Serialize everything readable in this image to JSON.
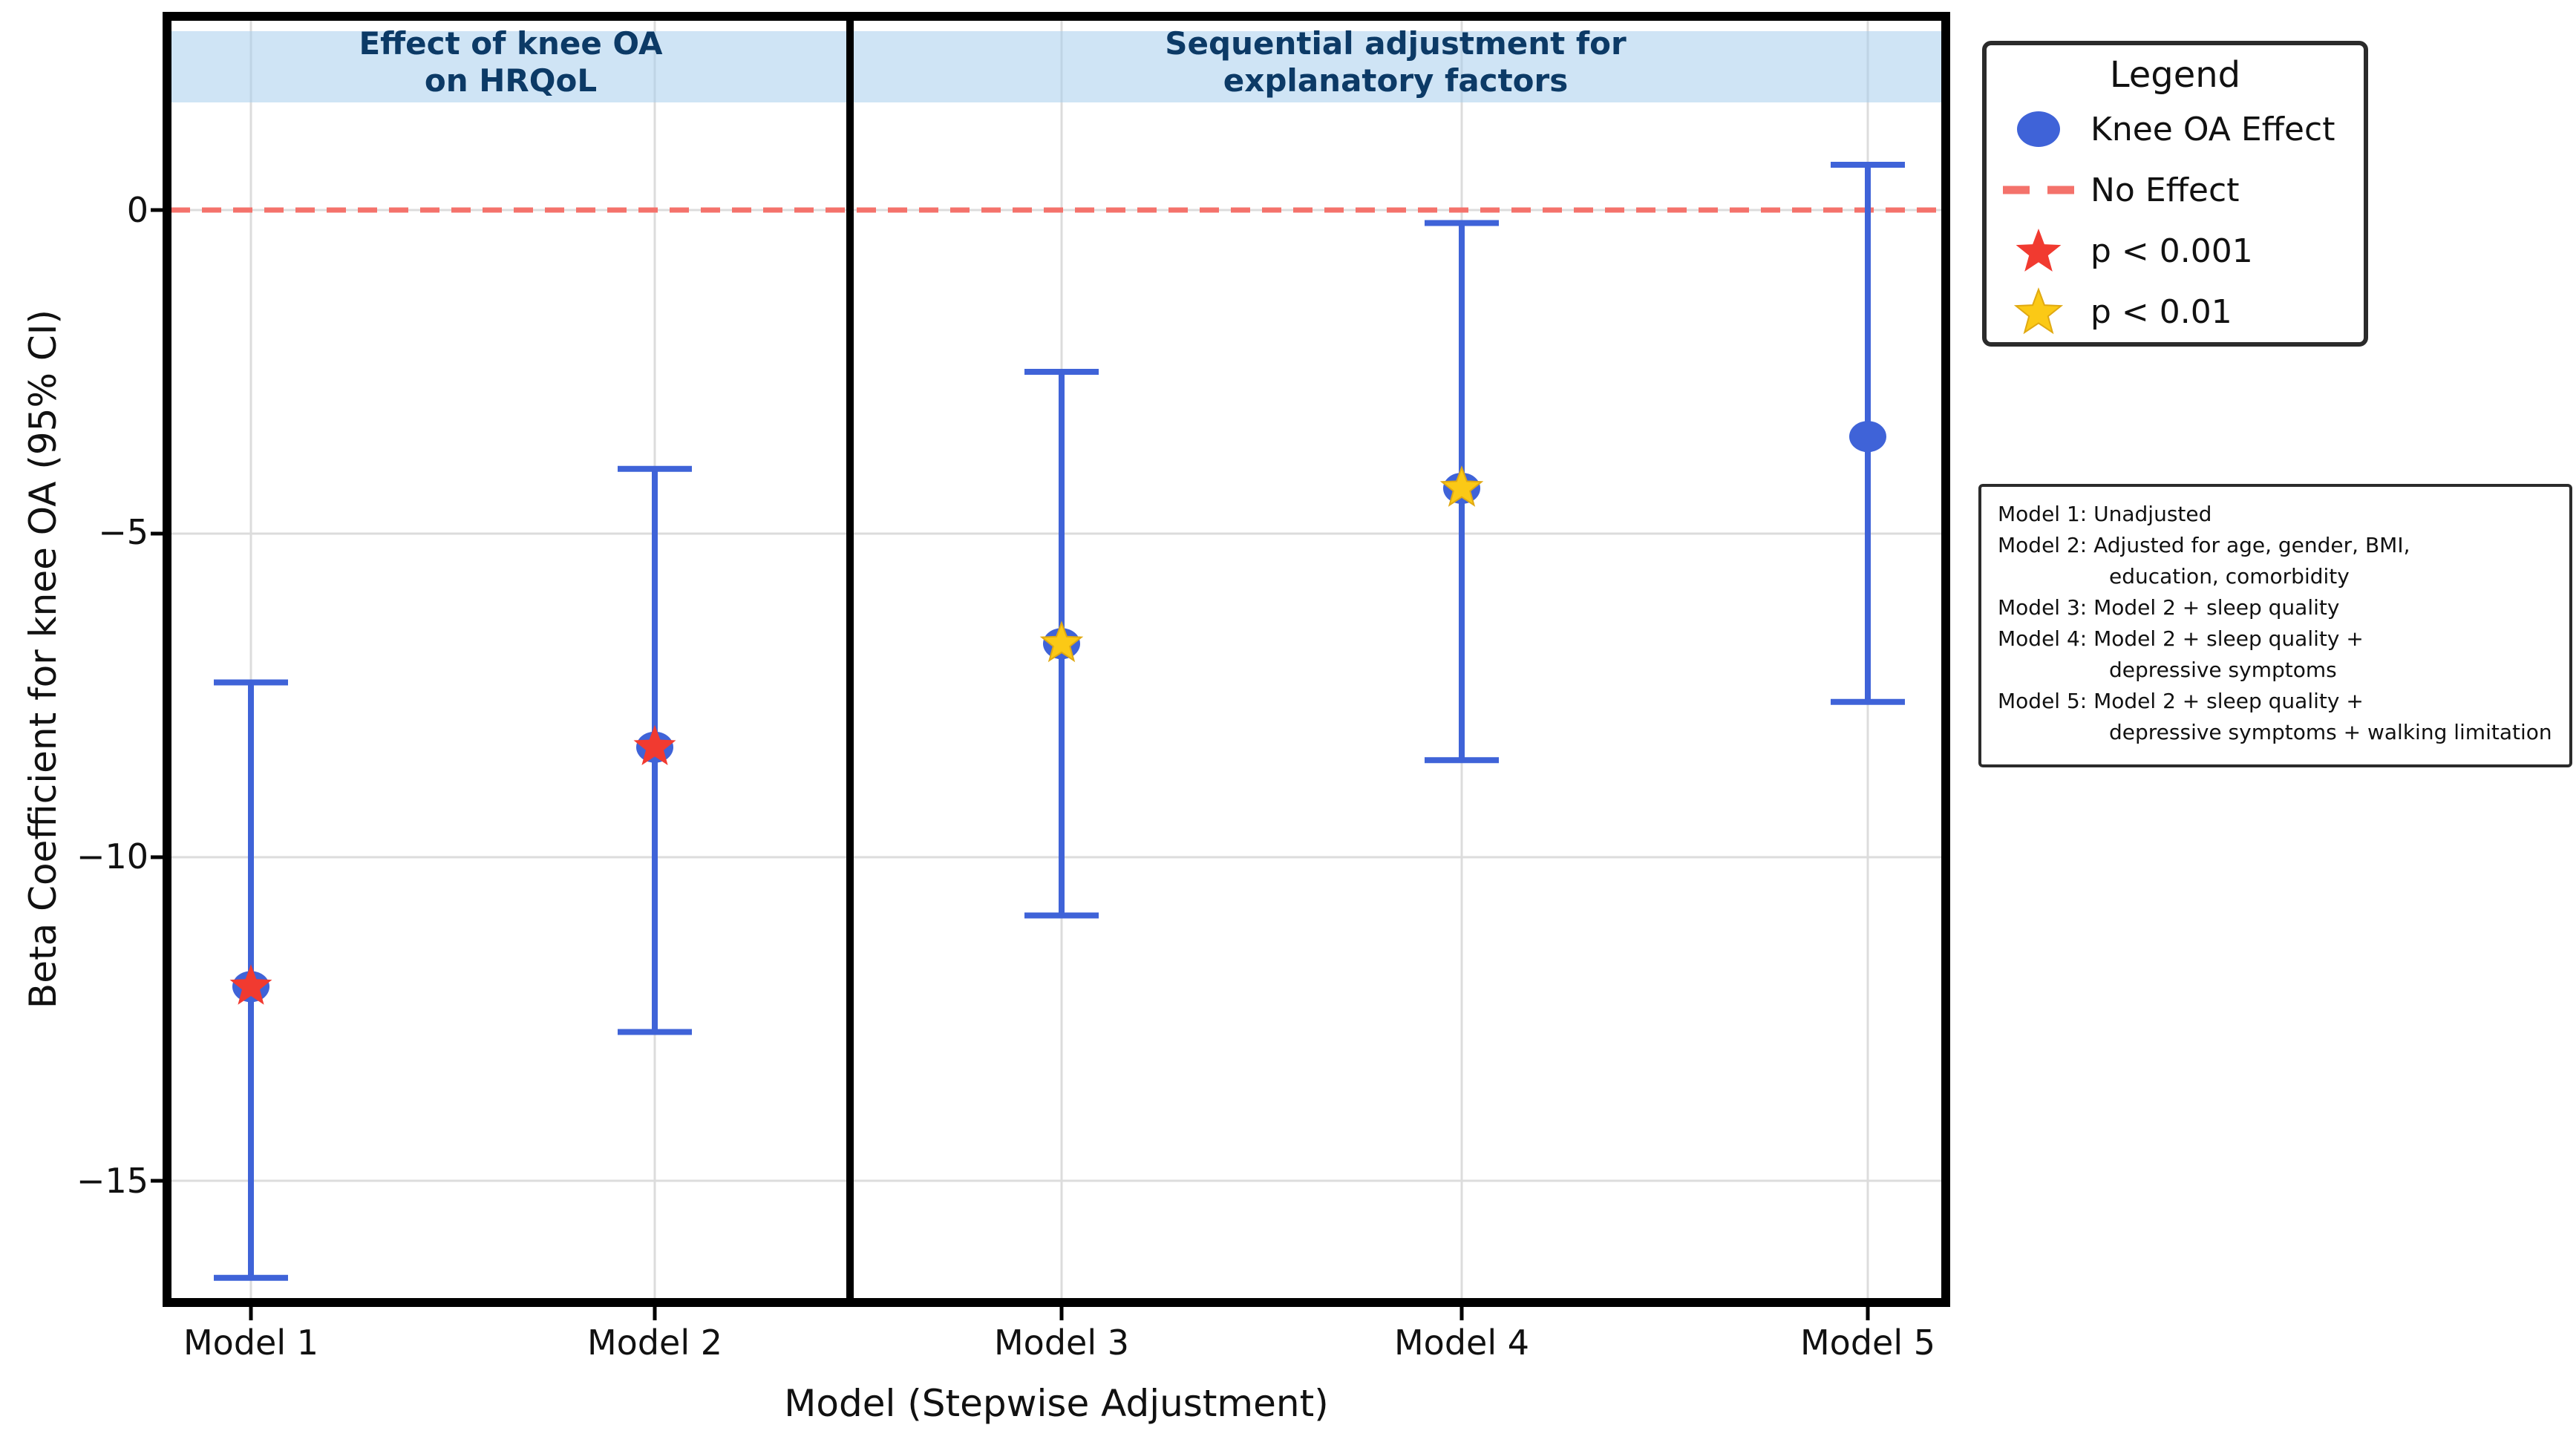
{
  "colors": {
    "marker_blue": "#3f63d8",
    "errorbar_blue": "#3f63d8",
    "red_star": "#f13a30",
    "yellow_star": "#fbc916",
    "yellow_star_edge": "#e0a912",
    "reference_line": "#f4726b",
    "banner_fill": "#a8cdec",
    "banner_text": "#0c3a66",
    "grid": "#dcdcdc",
    "border": "#000000",
    "background": "#ffffff"
  },
  "axes": {
    "y_label": "Beta Coefficient for knee OA (95% CI)",
    "x_label": "Model (Stepwise Adjustment)",
    "y_tick_labels": [
      "0",
      "−5",
      "−10",
      "−15"
    ]
  },
  "panel_titles": {
    "left": {
      "line1": "Effect of knee OA",
      "line2": "on HRQoL"
    },
    "right": {
      "line1": "Sequential adjustment for",
      "line2": "explanatory factors"
    }
  },
  "chart_data": {
    "type": "scatter",
    "subtype": "forest-errorbar",
    "categories": [
      "Model 1",
      "Model 2",
      "Model 3",
      "Model 4",
      "Model 5"
    ],
    "series": [
      {
        "name": "Knee OA Effect",
        "values": [
          -12.0,
          -8.3,
          -6.7,
          -4.3,
          -3.5
        ],
        "ci_low": [
          -16.5,
          -12.7,
          -10.9,
          -8.5,
          -7.6
        ],
        "ci_high": [
          -7.3,
          -4.0,
          -2.5,
          -0.2,
          0.7
        ],
        "significance": [
          "p < 0.001",
          "p < 0.001",
          "p < 0.01",
          "p < 0.01",
          "ns"
        ]
      }
    ],
    "reference_line": {
      "value": 0,
      "label": "No Effect",
      "style": "dashed"
    },
    "panels": [
      {
        "title": "Effect of knee OA on HRQoL",
        "categories": [
          "Model 1",
          "Model 2"
        ]
      },
      {
        "title": "Sequential adjustment for explanatory factors",
        "categories": [
          "Model 3",
          "Model 4",
          "Model 5"
        ]
      }
    ],
    "xlabel": "Model (Stepwise Adjustment)",
    "ylabel": "Beta Coefficient for knee OA (95% CI)",
    "ylim": [
      -16.9,
      3.0
    ],
    "y_ticks": [
      0,
      -5,
      -10,
      -15
    ],
    "grid": true,
    "legend_position": "outside-right-top"
  },
  "legend": {
    "title": "Legend",
    "items": [
      {
        "label": "Knee OA Effect",
        "marker": "circle",
        "color": "#3f63d8"
      },
      {
        "label": "No Effect",
        "marker": "dashed-line",
        "color": "#f4726b"
      },
      {
        "label": "p < 0.001",
        "marker": "star",
        "color": "#f13a30"
      },
      {
        "label": "p < 0.01",
        "marker": "star",
        "color": "#fbc916"
      }
    ]
  },
  "notes": {
    "lines": [
      "Model 1: Unadjusted",
      "Model 2: Adjusted for age, gender, BMI,",
      "education, comorbidity",
      "Model 3: Model 2 + sleep quality",
      "Model 4: Model 2 + sleep quality +",
      "depressive symptoms",
      "Model 5: Model 2 + sleep quality +",
      "depressive symptoms + walking limitation"
    ]
  }
}
